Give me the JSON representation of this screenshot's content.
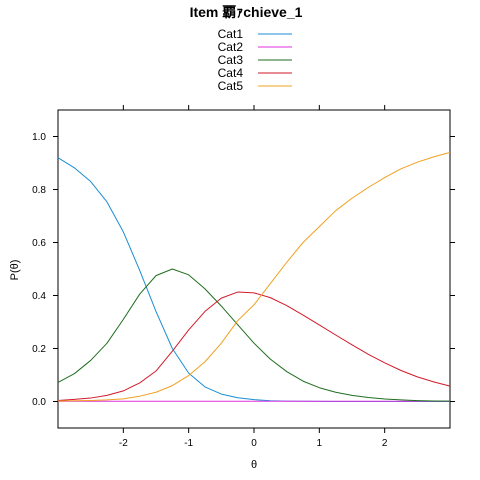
{
  "chart_data": {
    "type": "line",
    "title": "Item 覇ｧchieve_1",
    "xlabel": "θ",
    "ylabel": "P(θ)",
    "xlim": [
      -3,
      3
    ],
    "ylim": [
      -0.1,
      1.1
    ],
    "x_ticks": [
      -2,
      -1,
      0,
      1,
      2
    ],
    "y_ticks": [
      0.0,
      0.2,
      0.4,
      0.6,
      0.8,
      1.0
    ],
    "legend_position": "top",
    "grid": false,
    "x": [
      -3,
      -2.75,
      -2.5,
      -2.25,
      -2,
      -1.75,
      -1.5,
      -1.25,
      -1,
      -0.75,
      -0.5,
      -0.25,
      0,
      0.25,
      0.5,
      0.75,
      1,
      1.25,
      1.5,
      1.75,
      2,
      2.25,
      2.5,
      2.75,
      3
    ],
    "series": [
      {
        "name": "Cat1",
        "color": "#1b8ed4",
        "values": [
          0.92,
          0.882,
          0.83,
          0.753,
          0.64,
          0.495,
          0.34,
          0.2,
          0.107,
          0.055,
          0.028,
          0.014,
          0.007,
          0.003,
          0.0015,
          0.0007,
          0.0003,
          0.0001,
          0,
          0,
          0,
          0,
          0,
          0,
          0
        ]
      },
      {
        "name": "Cat2",
        "color": "#e030e0",
        "values": [
          0.001,
          0.001,
          0.001,
          0.001,
          0.001,
          0.001,
          0.001,
          0.001,
          0.001,
          0.001,
          0.001,
          0.001,
          0.001,
          0.001,
          0.001,
          0.001,
          0.001,
          0.001,
          0.001,
          0.001,
          0.001,
          0.001,
          0.001,
          0.001,
          0.001
        ]
      },
      {
        "name": "Cat3",
        "color": "#1f6e1f",
        "values": [
          0.072,
          0.105,
          0.155,
          0.22,
          0.31,
          0.405,
          0.475,
          0.5,
          0.478,
          0.425,
          0.36,
          0.29,
          0.22,
          0.16,
          0.113,
          0.077,
          0.052,
          0.035,
          0.023,
          0.015,
          0.0095,
          0.006,
          0.0035,
          0.002,
          0.0012
        ]
      },
      {
        "name": "Cat4",
        "color": "#d21a2a",
        "values": [
          0.004,
          0.008,
          0.013,
          0.023,
          0.04,
          0.07,
          0.115,
          0.19,
          0.27,
          0.34,
          0.39,
          0.413,
          0.41,
          0.392,
          0.362,
          0.326,
          0.289,
          0.251,
          0.214,
          0.178,
          0.146,
          0.117,
          0.093,
          0.074,
          0.058
        ]
      },
      {
        "name": "Cat5",
        "color": "#f0a020",
        "values": [
          0.002,
          0.003,
          0.004,
          0.006,
          0.01,
          0.02,
          0.035,
          0.06,
          0.098,
          0.15,
          0.22,
          0.305,
          0.365,
          0.445,
          0.525,
          0.6,
          0.66,
          0.72,
          0.767,
          0.808,
          0.845,
          0.878,
          0.903,
          0.923,
          0.94
        ]
      }
    ]
  }
}
